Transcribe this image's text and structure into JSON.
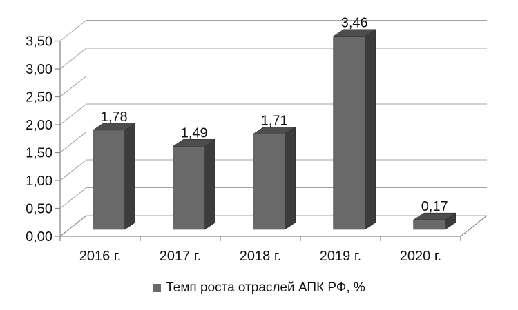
{
  "chart_data": {
    "type": "bar",
    "subtype": "3d-column",
    "title": "",
    "xlabel": "",
    "ylabel": "",
    "categories": [
      "2016 г.",
      "2017 г.",
      "2018 г.",
      "2019 г.",
      "2020 г."
    ],
    "series": [
      {
        "name": "Темп роста отраслей АПК РФ, %",
        "values": [
          1.78,
          1.49,
          1.71,
          3.46,
          0.17
        ],
        "value_labels": [
          "1,78",
          "1,49",
          "1,71",
          "3,46",
          "0,17"
        ]
      }
    ],
    "ylim": [
      0,
      3.5
    ],
    "y_tick_step": 0.5,
    "y_tick_labels": [
      "0,00",
      "0,50",
      "1,00",
      "1,50",
      "2,00",
      "2,50",
      "3,00",
      "3,50"
    ],
    "grid": true,
    "legend_position": "bottom",
    "decimal_separator": ","
  },
  "colors": {
    "background": "#ffffff",
    "bar_front": "#696969",
    "bar_top": "#4d4d4d",
    "bar_side": "#3c3c3c",
    "bar_edge": "#2e2e2e",
    "gridline": "#a1a1a1",
    "axis": "#8a8a8a",
    "text": "#111111"
  }
}
